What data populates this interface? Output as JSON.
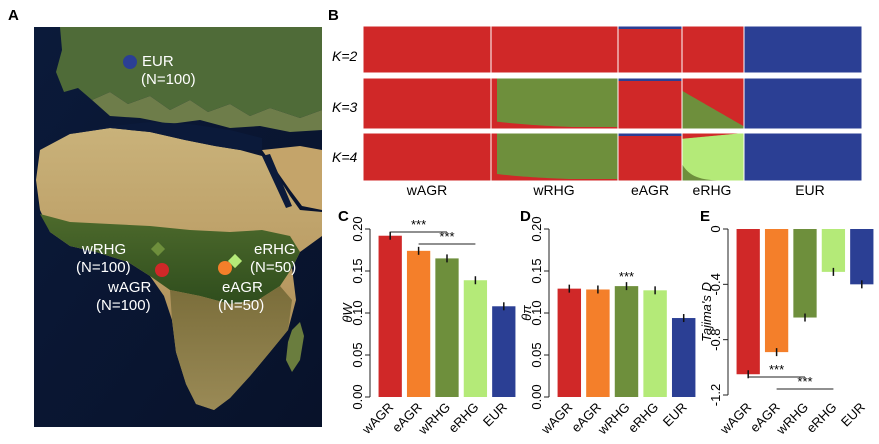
{
  "panels": {
    "a": {
      "letter": "A"
    },
    "b": {
      "letter": "B"
    },
    "c": {
      "letter": "C"
    },
    "d": {
      "letter": "D"
    },
    "e": {
      "letter": "E"
    }
  },
  "map": {
    "markers": [
      {
        "id": "EUR",
        "name": "EUR",
        "n_label": "(N=100)",
        "color": "#2c4a9a",
        "shape": "circle"
      },
      {
        "id": "wRHG",
        "name": "wRHG",
        "n_label": "(N=100)",
        "color": "#6b8e3a",
        "shape": "diamond"
      },
      {
        "id": "wAGR",
        "name": "wAGR",
        "n_label": "(N=100)",
        "color": "#d42a2a",
        "shape": "circle"
      },
      {
        "id": "eRHG",
        "name": "eRHG",
        "n_label": "(N=50)",
        "color": "#b8e57a",
        "shape": "diamond"
      },
      {
        "id": "eAGR",
        "name": "eAGR",
        "n_label": "(N=50)",
        "color": "#f28a2e",
        "shape": "circle"
      }
    ]
  },
  "structure": {
    "k_labels": [
      "K=2",
      "K=3",
      "K=4"
    ],
    "populations": [
      "wAGR",
      "wRHG",
      "eAGR",
      "eRHG",
      "EUR"
    ]
  },
  "colors": {
    "wAGR": "#d02828",
    "eAGR": "#f47f2a",
    "wRHG": "#6e8f3c",
    "eRHG": "#b4ea78",
    "EUR": "#2b3f94"
  },
  "chart_data": [
    {
      "panel": "C",
      "type": "bar",
      "ylabel": "θW",
      "categories": [
        "wAGR",
        "eAGR",
        "wRHG",
        "eRHG",
        "EUR"
      ],
      "values": [
        0.192,
        0.174,
        0.165,
        0.139,
        0.108
      ],
      "ylim": [
        0,
        0.2
      ],
      "yticks": [
        "0.00",
        "0.05",
        "0.10",
        "0.15",
        "0.20"
      ],
      "annotations": [
        "***",
        "***"
      ]
    },
    {
      "panel": "D",
      "type": "bar",
      "ylabel": "θπ",
      "categories": [
        "wAGR",
        "eAGR",
        "wRHG",
        "eRHG",
        "EUR"
      ],
      "values": [
        0.129,
        0.128,
        0.132,
        0.127,
        0.094
      ],
      "ylim": [
        0,
        0.2
      ],
      "yticks": [
        "0.00",
        "0.05",
        "0.10",
        "0.15",
        "0.20"
      ],
      "annotations": [
        "***"
      ]
    },
    {
      "panel": "E",
      "type": "bar",
      "ylabel": "Tajima's D",
      "categories": [
        "wAGR",
        "eAGR",
        "wRHG",
        "eRHG",
        "EUR"
      ],
      "values": [
        -1.05,
        -0.89,
        -0.64,
        -0.31,
        -0.4
      ],
      "ylim": [
        -1.2,
        0
      ],
      "yticks": [
        "-1.2",
        "-0.8",
        "-0.4",
        "0"
      ],
      "annotations": [
        "***",
        "***"
      ]
    }
  ]
}
